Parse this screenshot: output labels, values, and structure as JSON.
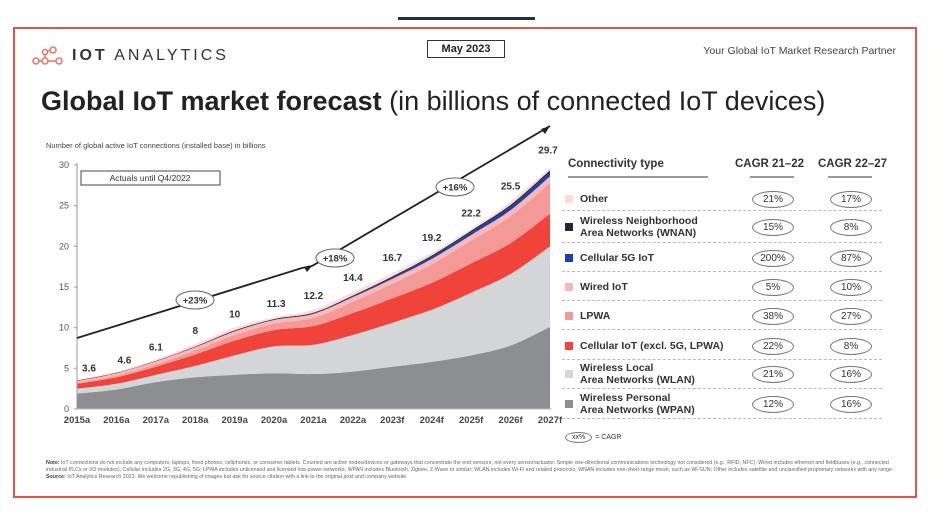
{
  "header": {
    "brand_bold": "IOT",
    "brand_light": "ANALYTICS",
    "date": "May 2023",
    "tagline": "Your Global IoT Market Research Partner"
  },
  "title": {
    "bold": "Global IoT market forecast",
    "light": " (in billions of connected IoT devices)"
  },
  "legend": {
    "col_type": "Connectivity type",
    "col_cagr1": "CAGR 21–22",
    "col_cagr2": "CAGR 22–27",
    "rows": [
      {
        "label": "Other",
        "color": "#fbdcdc",
        "cagr1": "21%",
        "cagr2": "17%"
      },
      {
        "label": "Wireless Neighborhood",
        "label2": "Area Networks (WNAN)",
        "color": "#262632",
        "cagr1": "15%",
        "cagr2": "8%"
      },
      {
        "label": "Cellular 5G IoT",
        "color": "#1f3fa8",
        "cagr1": "200%",
        "cagr2": "87%"
      },
      {
        "label": "Wired IoT",
        "color": "#f8b8b8",
        "cagr1": "5%",
        "cagr2": "10%"
      },
      {
        "label": "LPWA",
        "color": "#f39a98",
        "cagr1": "38%",
        "cagr2": "27%"
      },
      {
        "label": "Cellular IoT (excl. 5G, LPWA)",
        "color": "#f0443a",
        "cagr1": "22%",
        "cagr2": "8%"
      },
      {
        "label": "Wireless Local",
        "label2": "Area Networks (WLAN)",
        "color": "#d4d5d8",
        "cagr1": "21%",
        "cagr2": "16%"
      },
      {
        "label": "Wireless Personal",
        "label2": "Area Networks (WPAN)",
        "color": "#8d8e92",
        "cagr1": "12%",
        "cagr2": "16%"
      }
    ],
    "key_pill": "xx%",
    "key_text": "= CAGR"
  },
  "footnote": {
    "note_label": "Note:",
    "note_text": "IoT connections do not include any computers, laptops, fixed phones, cellphones, or consumer tablets. Counted are active nodes/devices or gateways that concentrate the end-sensors, not every sensor/actuator. Simple one-directional communications technology not considered (e.g., RFID, NFC). Wired includes ethernet and fieldbuses (e.g., connected industrial PLCs or I/O modules); Cellular includes 2G, 3G, 4G, 5G; LPWA includes unlicensed and licensed low-power networks; WPAN includes Bluetooth, Zigbee, Z-Wave or similar; WLAN includes Wi-Fi and related protocols; WNAN includes non-short-range mesh, such as Wi-SUN; Other includes satellite and unclassified proprietary networks with any range.",
    "source_label": "Source:",
    "source_text": "IoT Analytics Research 2023. We welcome republishing of images but ask for source citation with a link to the original post and company website."
  },
  "chart_data": {
    "type": "area",
    "stacked": true,
    "title": "Global IoT market forecast",
    "ylabel": "Number of global active IoT connections (installed base) in billions",
    "xlabel": "",
    "ylim": [
      0,
      30
    ],
    "yticks": [
      0,
      5,
      10,
      15,
      20,
      25,
      30
    ],
    "categories": [
      "2015a",
      "2016a",
      "2017a",
      "2018a",
      "2019a",
      "2020a",
      "2021a",
      "2022a",
      "2023f",
      "2024f",
      "2025f",
      "2026f",
      "2027f"
    ],
    "totals": [
      3.6,
      4.6,
      6.1,
      8.0,
      10.0,
      11.3,
      12.2,
      14.4,
      16.7,
      19.2,
      22.2,
      25.5,
      29.7
    ],
    "series": [
      {
        "name": "Wireless Personal Area Networks (WPAN)",
        "color": "#8d8e92",
        "values": [
          1.9,
          2.4,
          3.3,
          3.9,
          4.2,
          4.4,
          4.3,
          4.6,
          5.2,
          5.8,
          6.6,
          7.8,
          10.1
        ]
      },
      {
        "name": "Wireless Local Area Networks (WLAN)",
        "color": "#d4d5d8",
        "values": [
          0.6,
          0.7,
          0.9,
          1.4,
          2.4,
          3.3,
          3.6,
          4.5,
          5.4,
          6.4,
          7.7,
          8.8,
          9.9
        ]
      },
      {
        "name": "Cellular IoT (excl. 5G, LPWA)",
        "color": "#f0443a",
        "values": [
          0.6,
          0.8,
          1.0,
          1.4,
          1.8,
          2.0,
          2.3,
          2.7,
          3.0,
          3.3,
          3.6,
          3.8,
          4.0
        ]
      },
      {
        "name": "LPWA",
        "color": "#f39a98",
        "values": [
          0.1,
          0.2,
          0.3,
          0.5,
          0.7,
          0.8,
          1.0,
          1.4,
          1.8,
          2.3,
          2.8,
          3.3,
          3.8
        ]
      },
      {
        "name": "Wired IoT",
        "color": "#f8b8b8",
        "values": [
          0.25,
          0.3,
          0.35,
          0.4,
          0.45,
          0.45,
          0.5,
          0.55,
          0.6,
          0.65,
          0.7,
          0.75,
          0.8
        ]
      },
      {
        "name": "Cellular 5G IoT",
        "color": "#1f3fa8",
        "values": [
          0,
          0,
          0,
          0,
          0.01,
          0.02,
          0.03,
          0.08,
          0.15,
          0.25,
          0.35,
          0.45,
          0.5
        ]
      },
      {
        "name": "Wireless Neighborhood Area Networks (WNAN)",
        "color": "#262632",
        "values": [
          0.05,
          0.05,
          0.06,
          0.08,
          0.1,
          0.1,
          0.12,
          0.13,
          0.15,
          0.17,
          0.18,
          0.2,
          0.25
        ]
      },
      {
        "name": "Other",
        "color": "#fbdcdc",
        "values": [
          0.09,
          0.15,
          0.19,
          0.32,
          0.34,
          0.23,
          0.35,
          0.44,
          0.4,
          0.33,
          0.27,
          0.4,
          0.35
        ]
      }
    ],
    "annotations": {
      "box": "Actuals until Q4/2022",
      "cagr_labels": [
        {
          "text": "+23%",
          "from": "2015a",
          "to": "2021a"
        },
        {
          "text": "+18%",
          "from": "2021a",
          "to": "2022a"
        },
        {
          "text": "+16%",
          "from": "2022a",
          "to": "2027f"
        }
      ]
    },
    "grid": false,
    "legend_position": "right"
  }
}
